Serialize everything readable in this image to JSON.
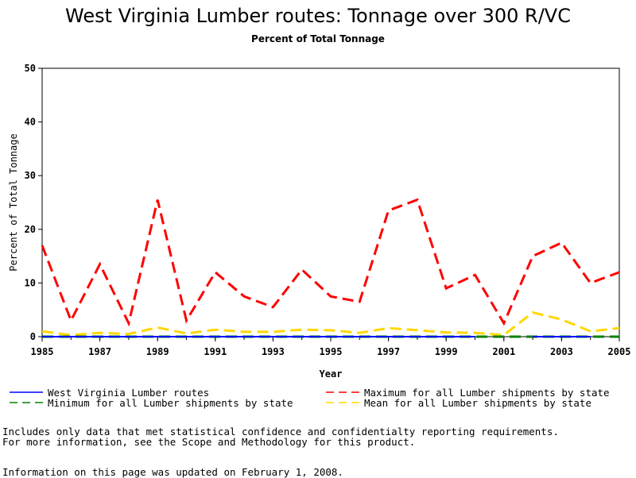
{
  "title": "West Virginia Lumber routes: Tonnage over 300 R/VC",
  "subtitle": "Percent of Total Tonnage",
  "notes": [
    "Includes only data that met statistical confidence and confidentialty reporting requirements.",
    "For more information, see the Scope and Methodology for this product."
  ],
  "updated": "Information on this page was updated on February 1, 2008.",
  "chart_data": {
    "type": "line",
    "xlabel": "Year",
    "ylabel": "Percent of Total Tonnage",
    "xlim": [
      1985,
      2005
    ],
    "ylim": [
      0,
      50
    ],
    "xticks": [
      1985,
      1987,
      1989,
      1991,
      1993,
      1995,
      1997,
      1999,
      2001,
      2003,
      2005
    ],
    "yticks": [
      0,
      10,
      20,
      30,
      40,
      50
    ],
    "x": [
      1985,
      1986,
      1987,
      1988,
      1989,
      1990,
      1991,
      1992,
      1993,
      1994,
      1995,
      1996,
      1997,
      1998,
      1999,
      2000,
      2001,
      2002,
      2003,
      2004,
      2005
    ],
    "series": [
      {
        "name": "West Virginia Lumber routes",
        "color": "#0000ff",
        "style": "solid",
        "values": [
          0,
          0,
          0,
          0,
          0,
          0,
          0,
          0,
          0,
          0,
          0,
          0,
          0,
          0,
          0,
          0,
          null,
          0,
          0,
          0,
          null
        ]
      },
      {
        "name": "Maximum for all Lumber shipments by state",
        "color": "#ff0000",
        "style": "dashed",
        "values": [
          17,
          3,
          13.5,
          2.5,
          25.5,
          3,
          12,
          7.5,
          5.5,
          12.5,
          7.5,
          6.5,
          23.5,
          25.5,
          9,
          11.5,
          2.5,
          15,
          17.5,
          10,
          12
        ]
      },
      {
        "name": "Minimum for all Lumber shipments by state",
        "color": "#008000",
        "style": "dashed",
        "values": [
          0,
          0,
          0,
          0,
          0,
          0,
          0,
          0,
          0,
          0,
          0,
          0,
          0,
          0,
          0,
          0,
          0,
          0,
          0,
          0,
          0
        ]
      },
      {
        "name": "Mean for all Lumber shipments by state",
        "color": "#ffd700",
        "style": "dashed",
        "values": [
          1,
          0.3,
          0.7,
          0.5,
          1.7,
          0.6,
          1.3,
          0.9,
          0.9,
          1.3,
          1.2,
          0.7,
          1.6,
          1.2,
          0.8,
          0.7,
          0.3,
          4.5,
          3.2,
          1.0,
          1.6
        ]
      }
    ],
    "legend_position": "bottom"
  }
}
